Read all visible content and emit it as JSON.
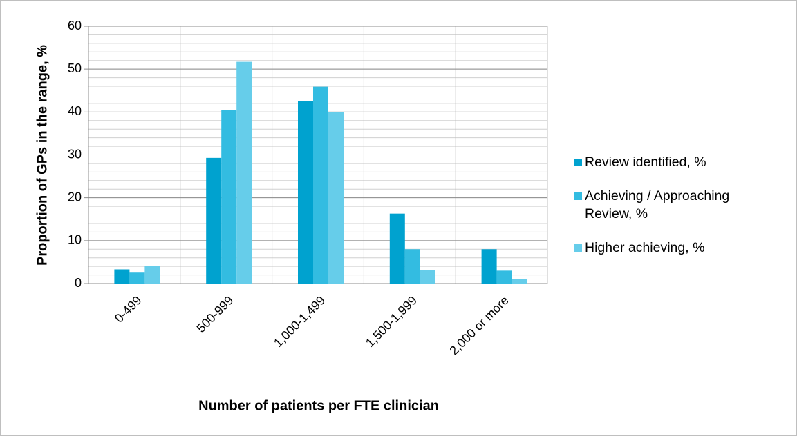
{
  "chart_data": {
    "type": "bar",
    "x_label": "Number of patients per FTE clinician",
    "y_label": "Proportion of GPs in the range, %",
    "categories": [
      "0-499",
      "500-999",
      "1,000-1,499",
      "1,500-1,999",
      "2,000 or more"
    ],
    "series": [
      {
        "name": "Review identified, %",
        "color": "#00a2cf",
        "values": [
          3.3,
          29.3,
          42.6,
          16.3,
          8.0
        ]
      },
      {
        "name": "Achieving / Approaching Review, %",
        "color": "#33bce1",
        "values": [
          2.7,
          40.5,
          45.9,
          8.0,
          3.0
        ]
      },
      {
        "name": "Higher achieving, %",
        "color": "#66cdea",
        "values": [
          4.1,
          51.7,
          40.0,
          3.2,
          1.0
        ]
      }
    ],
    "ylim": [
      0,
      60
    ],
    "yticks": [
      0,
      10,
      20,
      30,
      40,
      50,
      60
    ],
    "minor_grid_step": 2,
    "grid": true,
    "legend": "right"
  }
}
